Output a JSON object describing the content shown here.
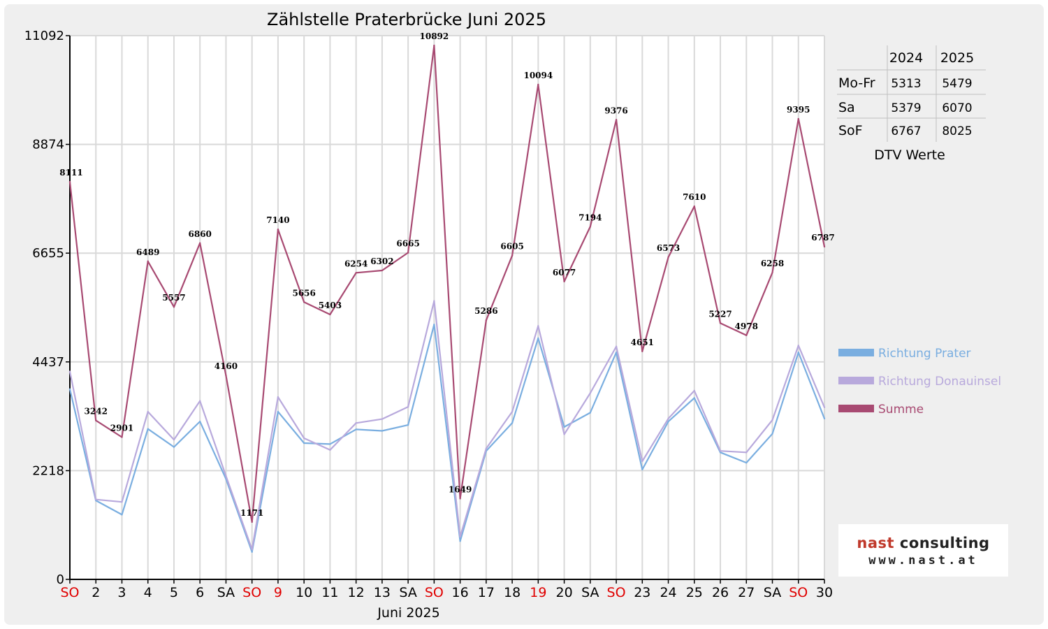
{
  "chart_data": {
    "type": "line",
    "title": "Zählstelle Praterbrücke Juni 2025",
    "xlabel": "Juni 2025",
    "ylabel": "",
    "ylim": [
      0,
      11092
    ],
    "yticks": [
      "0",
      "2218",
      "4437",
      "6655",
      "8874",
      "11092"
    ],
    "grid": true,
    "categories": [
      "SO",
      "2",
      "3",
      "4",
      "5",
      "6",
      "SA",
      "SO",
      "9",
      "10",
      "11",
      "12",
      "13",
      "SA",
      "SO",
      "16",
      "17",
      "18",
      "19",
      "20",
      "SA",
      "SO",
      "23",
      "24",
      "25",
      "26",
      "27",
      "SA",
      "SO",
      "30"
    ],
    "category_colors": [
      "#e00000",
      "#000000",
      "#000000",
      "#000000",
      "#000000",
      "#000000",
      "#000000",
      "#e00000",
      "#e00000",
      "#000000",
      "#000000",
      "#000000",
      "#000000",
      "#000000",
      "#e00000",
      "#000000",
      "#000000",
      "#000000",
      "#e00000",
      "#000000",
      "#000000",
      "#e00000",
      "#000000",
      "#000000",
      "#000000",
      "#000000",
      "#000000",
      "#000000",
      "#e00000",
      "#000000"
    ],
    "series": [
      {
        "name": "Richtung Prater",
        "color": "#7aaee0",
        "values": [
          3880,
          1610,
          1320,
          3070,
          2700,
          3220,
          2050,
          560,
          3420,
          2780,
          2760,
          3060,
          3030,
          3150,
          5200,
          780,
          2620,
          3190,
          4920,
          3110,
          3400,
          4630,
          2240,
          3220,
          3700,
          2590,
          2380,
          2970,
          4630,
          3280
        ]
      },
      {
        "name": "Richtung Donauinsel",
        "color": "#b8a9dc",
        "values": [
          4240,
          1630,
          1580,
          3420,
          2850,
          3640,
          2110,
          610,
          3720,
          2880,
          2640,
          3190,
          3270,
          3520,
          5680,
          870,
          2670,
          3420,
          5170,
          2960,
          3800,
          4750,
          2410,
          3280,
          3850,
          2620,
          2590,
          3250,
          4770,
          3510
        ]
      },
      {
        "name": "Summe",
        "color": "#a84a72",
        "values": [
          8111,
          3242,
          2901,
          6489,
          5557,
          6860,
          4160,
          1171,
          7140,
          5656,
          5403,
          6254,
          6302,
          6665,
          10892,
          1649,
          5286,
          6605,
          10094,
          6077,
          7194,
          9376,
          4651,
          6573,
          7610,
          5227,
          4978,
          6258,
          9395,
          6787
        ]
      }
    ],
    "data_labels": [
      "8111",
      "3242",
      "2901",
      "6489",
      "5557",
      "6860",
      "4160",
      "1171",
      "7140",
      "5656",
      "5403",
      "6254",
      "6302",
      "6665",
      "10892",
      "1649",
      "5286",
      "6605",
      "10094",
      "6077",
      "7194",
      "9376",
      "4651",
      "6573",
      "7610",
      "5227",
      "4978",
      "6258",
      "9395",
      "6787"
    ],
    "legend_position": "right"
  },
  "dtv_table": {
    "headers": [
      "",
      "2024",
      "2025"
    ],
    "rows": [
      {
        "label": "Mo-Fr",
        "v2024": "5313",
        "v2025": "5479"
      },
      {
        "label": "Sa",
        "v2024": "5379",
        "v2025": "6070"
      },
      {
        "label": "SoF",
        "v2024": "6767",
        "v2025": "8025"
      }
    ],
    "caption": "DTV Werte"
  },
  "logo": {
    "brand_part1": "nast",
    "brand_part2": " consulting",
    "url": "www.nast.at"
  }
}
